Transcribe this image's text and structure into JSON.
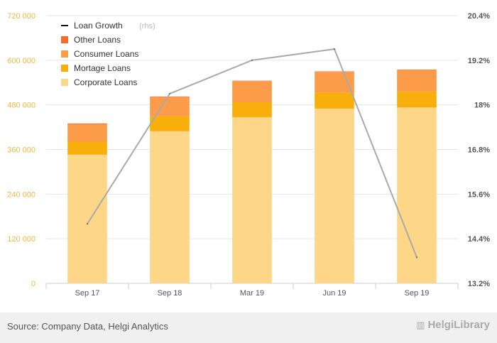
{
  "chart_data": {
    "type": "bar",
    "stacked": true,
    "categories": [
      "Sep 17",
      "Sep 18",
      "Mar 19",
      "Jun 19",
      "Sep 19"
    ],
    "series": [
      {
        "name": "Corporate Loans",
        "color": "#fdd687",
        "values": [
          346000,
          409000,
          447000,
          470000,
          473000
        ]
      },
      {
        "name": "Mortage Loans",
        "color": "#f9af0b",
        "values": [
          35000,
          40000,
          40000,
          43000,
          43000
        ]
      },
      {
        "name": "Consumer Loans",
        "color": "#fc9c4a",
        "values": [
          47000,
          51000,
          57000,
          56000,
          58000
        ]
      },
      {
        "name": "Other Loans",
        "color": "#f96b2a",
        "values": [
          2000,
          2000,
          1000,
          1000,
          1000
        ]
      }
    ],
    "line_series": {
      "name": "Loan Growth",
      "name_suffix": "(rhs)",
      "color": "#aaaaaa",
      "values": [
        14.8,
        18.3,
        19.2,
        19.5,
        13.9
      ]
    },
    "y_left": {
      "min": 0,
      "max": 720000,
      "ticks": [
        "0",
        "120 000",
        "240 000",
        "360 000",
        "480 000",
        "600 000",
        "720 000"
      ],
      "tick_values": [
        0,
        120000,
        240000,
        360000,
        480000,
        600000,
        720000
      ]
    },
    "y_right": {
      "min": 13.2,
      "max": 20.4,
      "ticks": [
        "13.2%",
        "14.4%",
        "15.6%",
        "16.8%",
        "18%",
        "19.2%",
        "20.4%"
      ],
      "tick_values": [
        13.2,
        14.4,
        15.6,
        16.8,
        18.0,
        19.2,
        20.4
      ]
    },
    "grid": true,
    "legend_position": "top-left",
    "legend_order": [
      "Loan Growth",
      "Other Loans",
      "Consumer Loans",
      "Mortage Loans",
      "Corporate Loans"
    ]
  },
  "footer": {
    "source": "Source: Company Data, Helgi Analytics",
    "brand": "HelgiLibrary"
  },
  "colors": {
    "grid": "#e6e6e6",
    "axis": "#cccccc",
    "footer_bg": "#f0f0f0"
  }
}
